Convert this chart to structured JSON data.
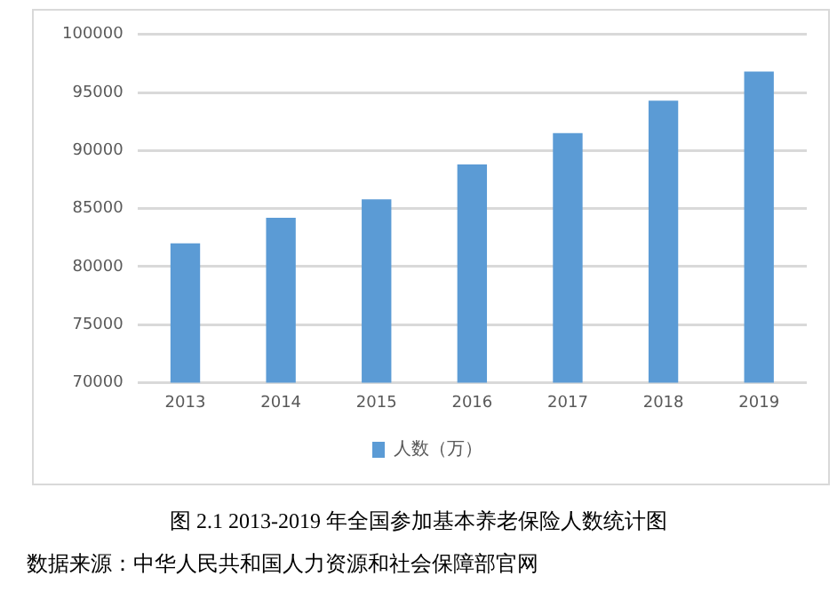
{
  "chart_data": {
    "type": "bar",
    "title": "图 2.1  2013-2019 年全国参加基本养老保险人数统计图",
    "categories": [
      "2013",
      "2014",
      "2015",
      "2016",
      "2017",
      "2018",
      "2019"
    ],
    "series": [
      {
        "name": "人数（万）",
        "color": "#5b9bd5",
        "values": [
          82000,
          84200,
          85800,
          88800,
          91500,
          94300,
          96800
        ]
      }
    ],
    "ylim": [
      70000,
      100000
    ],
    "yticks": [
      70000,
      75000,
      80000,
      85000,
      90000,
      95000,
      100000
    ],
    "grid": "y",
    "legend": "bottom",
    "annotations": [
      "数据来源：中华人民共和国人力资源和社会保障部官网"
    ]
  }
}
